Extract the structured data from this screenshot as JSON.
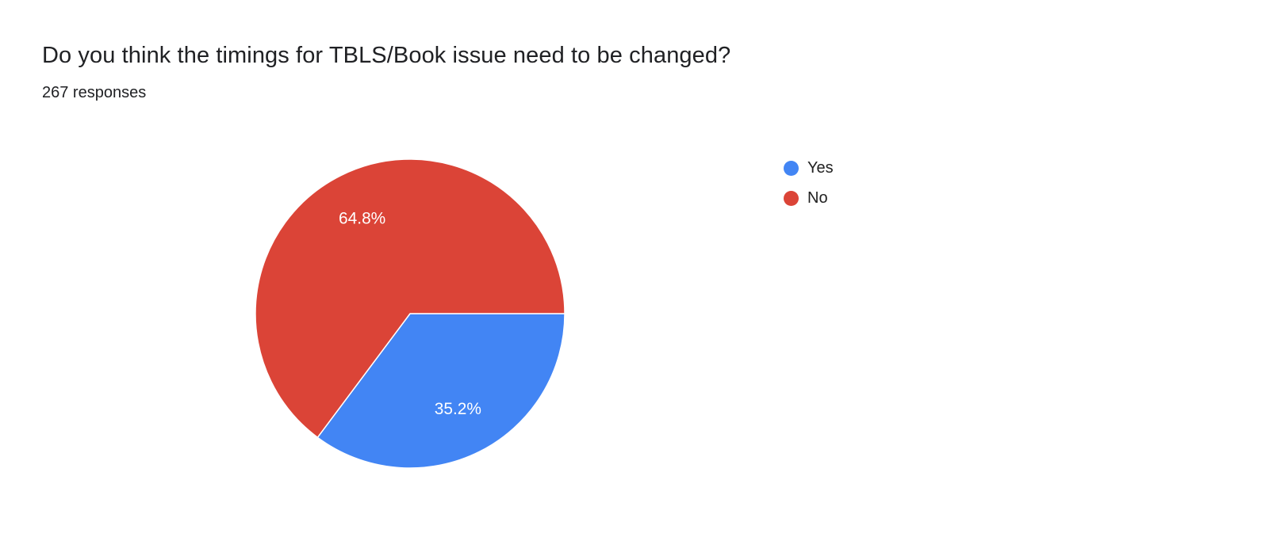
{
  "header": {
    "title": "Do you think the timings for TBLS/Book issue need to be changed?",
    "responses": "267 responses"
  },
  "chart_data": {
    "type": "pie",
    "title": "Do you think the timings for TBLS/Book issue need to be changed?",
    "responses_count": 267,
    "labels": [
      "Yes",
      "No"
    ],
    "values": [
      35.2,
      64.8
    ],
    "slice_labels": [
      "35.2%",
      "64.8%"
    ],
    "colors": [
      "#4285f4",
      "#db4437"
    ],
    "start_angle_deg_from_east_clockwise": 0,
    "legend_position": "right"
  },
  "legend": {
    "items": [
      {
        "label": "Yes",
        "color": "#4285f4"
      },
      {
        "label": "No",
        "color": "#db4437"
      }
    ]
  }
}
